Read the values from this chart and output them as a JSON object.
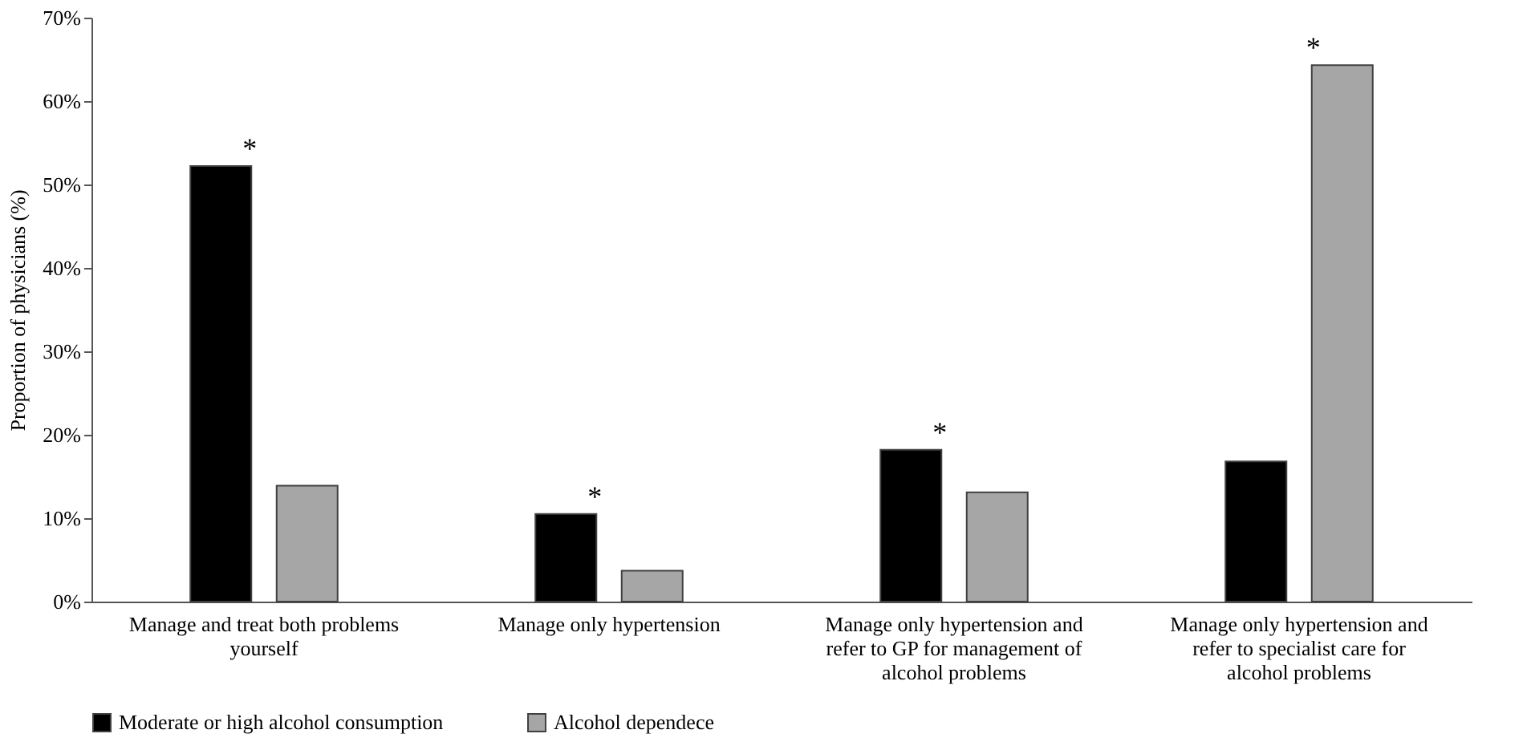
{
  "chart_data": {
    "type": "bar",
    "ylabel": "Proportion of physicians (%)",
    "categories": [
      "Manage and treat both problems yourself",
      "Manage only hypertension",
      "Manage only hypertension and refer to GP for management of alcohol problems",
      "Manage only hypertension and refer to specialist care for alcohol problems"
    ],
    "series": [
      {
        "name": "Moderate or high alcohol consumption",
        "color": "#000000",
        "values": [
          52.2,
          10.5,
          18.2,
          16.8
        ]
      },
      {
        "name": "Alcohol dependece",
        "color": "#a6a6a6",
        "values": [
          13.9,
          3.7,
          13.1,
          64.3
        ]
      }
    ],
    "ylim": [
      0,
      70
    ],
    "yticks": [
      {
        "value": 0,
        "label": "0%"
      },
      {
        "value": 10,
        "label": "10%"
      },
      {
        "value": 20,
        "label": "20%"
      },
      {
        "value": 30,
        "label": "30%"
      },
      {
        "value": 40,
        "label": "40%"
      },
      {
        "value": 50,
        "label": "50%"
      },
      {
        "value": 60,
        "label": "60%"
      },
      {
        "value": 70,
        "label": "70%"
      }
    ],
    "annotations": [
      "*",
      "*",
      "*",
      "*"
    ],
    "grid": false,
    "legend": "bottom"
  }
}
